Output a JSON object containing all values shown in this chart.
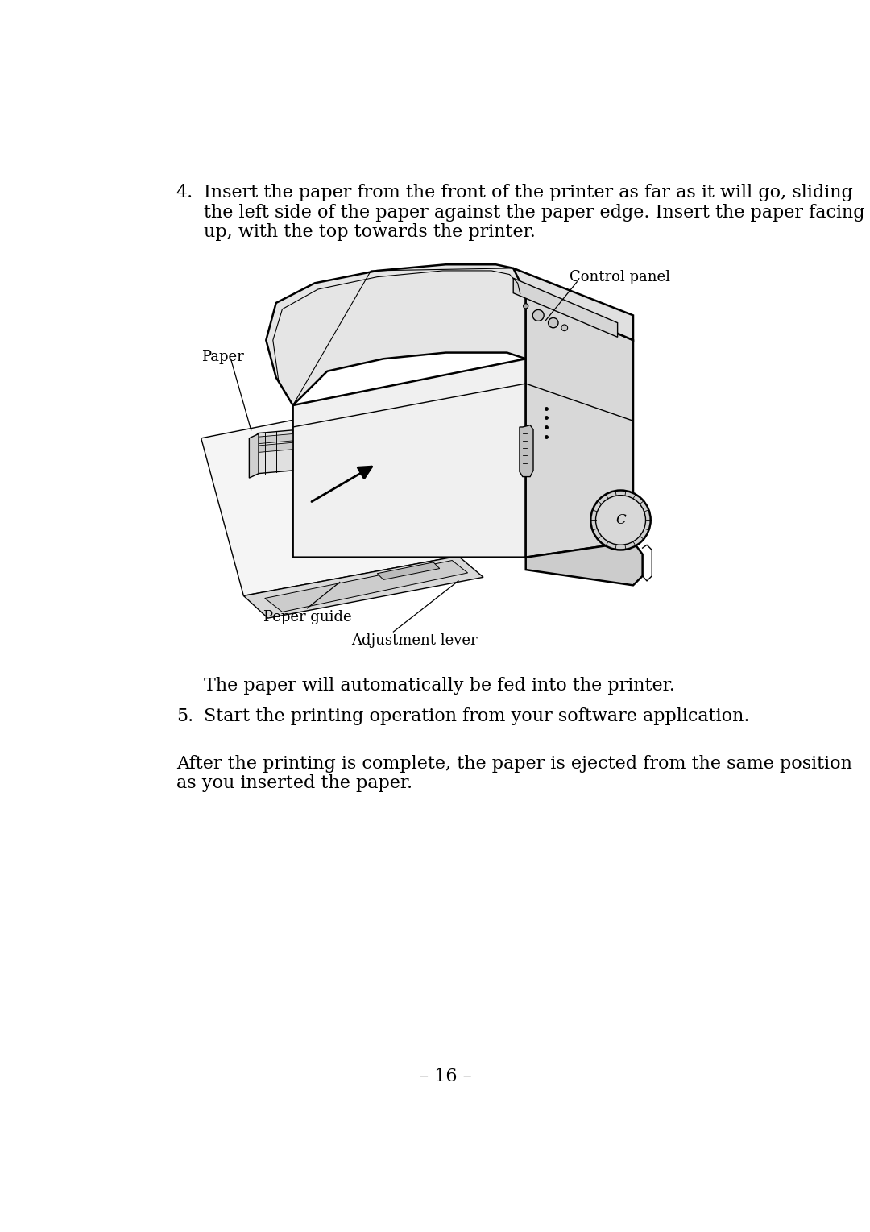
{
  "bg_color": "#ffffff",
  "text_color": "#000000",
  "page_number": "– 16 –",
  "step4_num": "4.",
  "step4_line1": "Insert the paper from the front of the printer as far as it will go, sliding",
  "step4_line2": "the left side of the paper against the paper edge. Insert the paper facing",
  "step4_line3": "up, with the top towards the printer.",
  "label_control_panel": "Control panel",
  "label_paper": "Paper",
  "label_peper_guide": "Peper guide",
  "label_adjustment_lever": "Adjustment lever",
  "auto_feed_text": "The paper will automatically be fed into the printer.",
  "step5_num": "5.",
  "step5_text": "Start the printing operation from your software application.",
  "footer_line1": "After the printing is complete, the paper is ejected from the same position",
  "footer_line2": "as you inserted the paper.",
  "font_size_body": 16,
  "font_size_label": 13,
  "font_family": "DejaVu Serif"
}
